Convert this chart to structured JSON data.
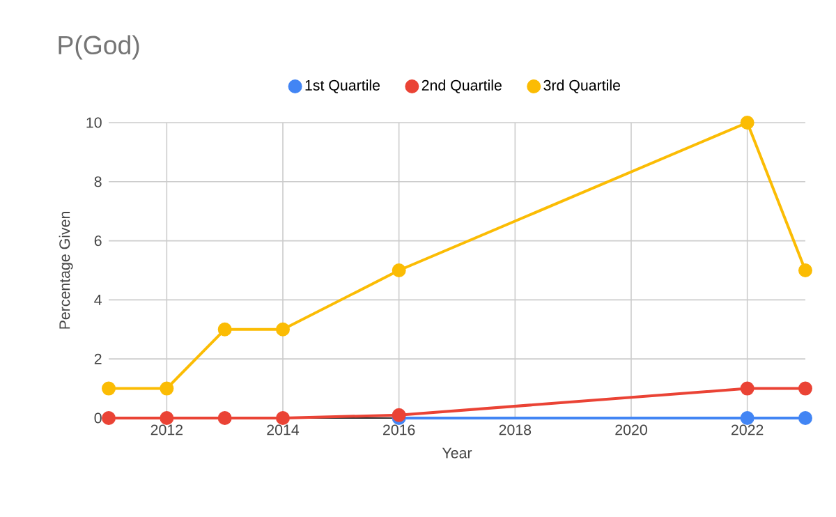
{
  "chart_data": {
    "type": "line",
    "title": "P(God)",
    "xlabel": "Year",
    "ylabel": "Percentage Given",
    "x": [
      2011,
      2012,
      2013,
      2014,
      2016,
      2022,
      2023
    ],
    "series": [
      {
        "name": "1st Quartile",
        "color": "#4285f4",
        "values": [
          null,
          null,
          null,
          null,
          0,
          0,
          0
        ]
      },
      {
        "name": "2nd Quartile",
        "color": "#ea4335",
        "values": [
          0,
          0,
          0,
          0,
          0.1,
          1,
          1
        ]
      },
      {
        "name": "3rd Quartile",
        "color": "#fbbc04",
        "values": [
          1,
          1,
          3,
          3,
          5,
          10,
          5
        ]
      }
    ],
    "xlim": [
      2011,
      2023
    ],
    "xticks": [
      2012,
      2014,
      2016,
      2018,
      2020,
      2022
    ],
    "ylim": [
      0,
      10
    ],
    "yticks": [
      0,
      2,
      4,
      6,
      8,
      10
    ],
    "grid": true,
    "legend": "top",
    "marker": "circle",
    "line_style": "solid"
  }
}
